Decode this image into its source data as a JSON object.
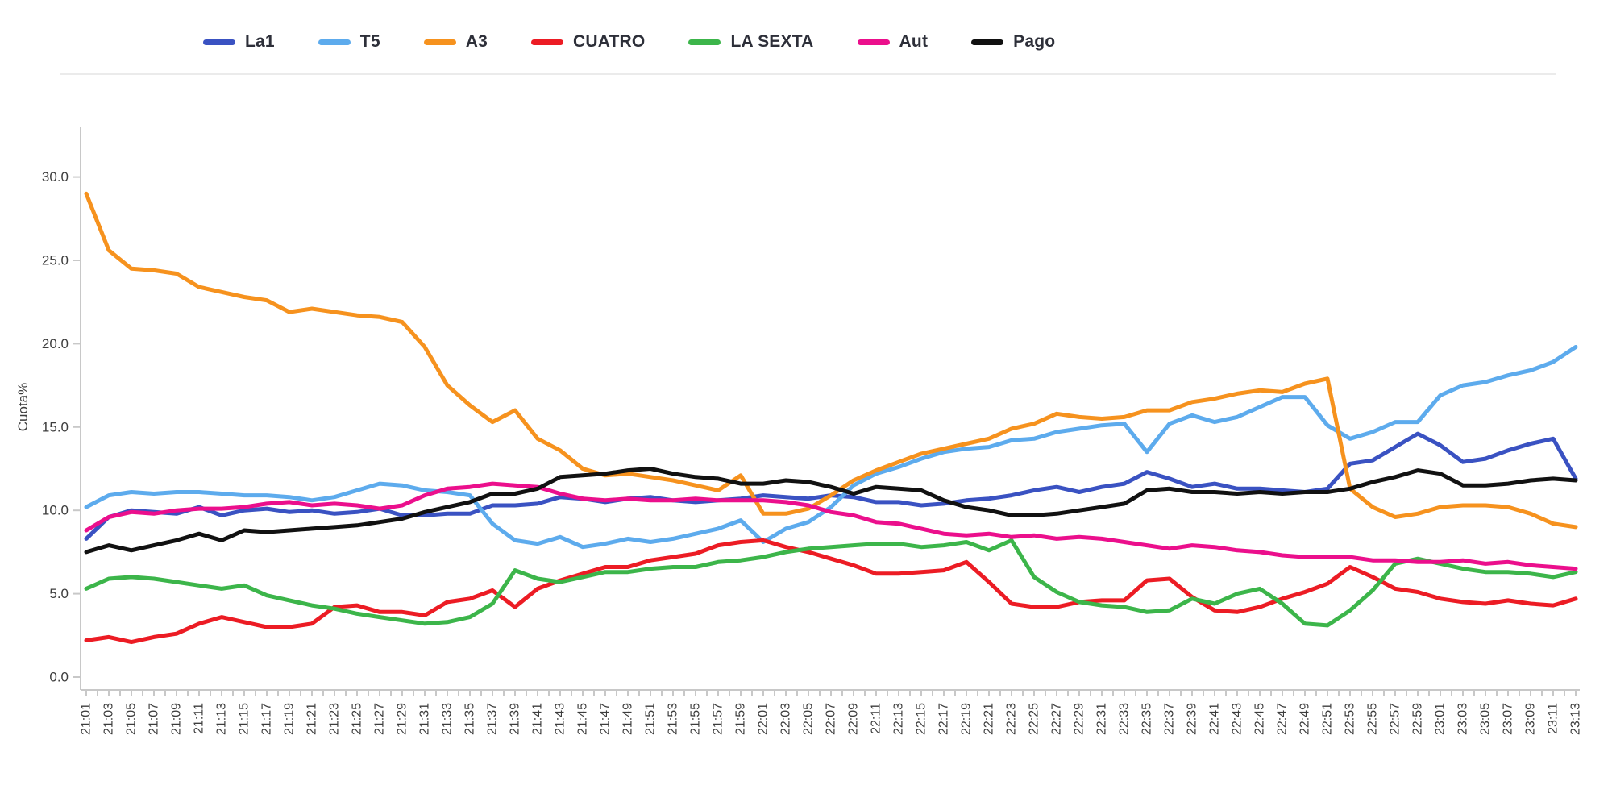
{
  "chart_data": {
    "type": "line",
    "title": "",
    "xlabel": "",
    "ylabel": "Cuota%",
    "ylim": [
      0,
      32
    ],
    "grid": false,
    "legend_position": "top",
    "x_minor_tick_minutes": 1,
    "x_label_interval_minutes": 2,
    "y_tick_labels": [
      "0.0",
      "5.0",
      "10.0",
      "15.0",
      "20.0",
      "25.0",
      "30.0"
    ],
    "y_tick_values": [
      0,
      5,
      10,
      15,
      20,
      25,
      30
    ],
    "categories": [
      "21:01",
      "21:03",
      "21:05",
      "21:07",
      "21:09",
      "21:11",
      "21:13",
      "21:15",
      "21:17",
      "21:19",
      "21:21",
      "21:23",
      "21:25",
      "21:27",
      "21:29",
      "21:31",
      "21:33",
      "21:35",
      "21:37",
      "21:39",
      "21:41",
      "21:43",
      "21:45",
      "21:47",
      "21:49",
      "21:51",
      "21:53",
      "21:55",
      "21:57",
      "21:59",
      "22:01",
      "22:03",
      "22:05",
      "22:07",
      "22:09",
      "22:11",
      "22:13",
      "22:15",
      "22:17",
      "22:19",
      "22:21",
      "22:23",
      "22:25",
      "22:27",
      "22:29",
      "22:31",
      "22:33",
      "22:35",
      "22:37",
      "22:39",
      "22:41",
      "22:43",
      "22:45",
      "22:47",
      "22:49",
      "22:51",
      "22:53",
      "22:55",
      "22:57",
      "22:59",
      "23:01",
      "23:03",
      "23:05",
      "23:07",
      "23:09",
      "23:11",
      "23:13"
    ],
    "series": [
      {
        "name": "La1",
        "color": "#3a52c2",
        "values": [
          8.3,
          9.6,
          10.0,
          9.9,
          9.8,
          10.2,
          9.7,
          10.0,
          10.1,
          9.9,
          10.0,
          9.8,
          9.9,
          10.1,
          9.7,
          9.7,
          9.8,
          9.8,
          10.3,
          10.3,
          10.4,
          10.8,
          10.7,
          10.5,
          10.7,
          10.8,
          10.6,
          10.5,
          10.6,
          10.7,
          10.9,
          10.8,
          10.7,
          10.9,
          10.8,
          10.5,
          10.5,
          10.3,
          10.4,
          10.6,
          10.7,
          10.9,
          11.2,
          11.4,
          11.1,
          11.4,
          11.6,
          12.3,
          11.9,
          11.4,
          11.6,
          11.3,
          11.3,
          11.2,
          11.1,
          11.3,
          12.8,
          13.0,
          13.8,
          14.6,
          13.9,
          12.9,
          13.1,
          13.6,
          14.0,
          14.3,
          11.9
        ]
      },
      {
        "name": "T5",
        "color": "#5dabed",
        "values": [
          10.2,
          10.9,
          11.1,
          11.0,
          11.1,
          11.1,
          11.0,
          10.9,
          10.9,
          10.8,
          10.6,
          10.8,
          11.2,
          11.6,
          11.5,
          11.2,
          11.1,
          10.9,
          9.2,
          8.2,
          8.0,
          8.4,
          7.8,
          8.0,
          8.3,
          8.1,
          8.3,
          8.6,
          8.9,
          9.4,
          8.1,
          8.9,
          9.3,
          10.2,
          11.5,
          12.2,
          12.6,
          13.1,
          13.5,
          13.7,
          13.8,
          14.2,
          14.3,
          14.7,
          14.9,
          15.1,
          15.2,
          13.5,
          15.2,
          15.7,
          15.3,
          15.6,
          16.2,
          16.8,
          16.8,
          15.1,
          14.3,
          14.7,
          15.3,
          15.3,
          16.9,
          17.5,
          17.7,
          18.1,
          18.4,
          18.9,
          19.8
        ]
      },
      {
        "name": "A3",
        "color": "#f6921e",
        "values": [
          29.0,
          25.6,
          24.5,
          24.4,
          24.2,
          23.4,
          23.1,
          22.8,
          22.6,
          21.9,
          22.1,
          21.9,
          21.7,
          21.6,
          21.3,
          19.8,
          17.5,
          16.3,
          15.3,
          16.0,
          14.3,
          13.6,
          12.5,
          12.1,
          12.2,
          12.0,
          11.8,
          11.5,
          11.2,
          12.1,
          9.8,
          9.8,
          10.1,
          10.9,
          11.8,
          12.4,
          12.9,
          13.4,
          13.7,
          14.0,
          14.3,
          14.9,
          15.2,
          15.8,
          15.6,
          15.5,
          15.6,
          16.0,
          16.0,
          16.5,
          16.7,
          17.0,
          17.2,
          17.1,
          17.6,
          17.9,
          11.3,
          10.2,
          9.6,
          9.8,
          10.2,
          10.3,
          10.3,
          10.2,
          9.8,
          9.2,
          9.0
        ]
      },
      {
        "name": "CUATRO",
        "color": "#ec1c24",
        "values": [
          2.2,
          2.4,
          2.1,
          2.4,
          2.6,
          3.2,
          3.6,
          3.3,
          3.0,
          3.0,
          3.2,
          4.2,
          4.3,
          3.9,
          3.9,
          3.7,
          4.5,
          4.7,
          5.2,
          4.2,
          5.3,
          5.8,
          6.2,
          6.6,
          6.6,
          7.0,
          7.2,
          7.4,
          7.9,
          8.1,
          8.2,
          7.8,
          7.5,
          7.1,
          6.7,
          6.2,
          6.2,
          6.3,
          6.4,
          6.9,
          5.7,
          4.4,
          4.2,
          4.2,
          4.5,
          4.6,
          4.6,
          5.8,
          5.9,
          4.8,
          4.0,
          3.9,
          4.2,
          4.7,
          5.1,
          5.6,
          6.6,
          6.0,
          5.3,
          5.1,
          4.7,
          4.5,
          4.4,
          4.6,
          4.4,
          4.3,
          4.7
        ]
      },
      {
        "name": "LA SEXTA",
        "color": "#3cb54a",
        "values": [
          5.3,
          5.9,
          6.0,
          5.9,
          5.7,
          5.5,
          5.3,
          5.5,
          4.9,
          4.6,
          4.3,
          4.1,
          3.8,
          3.6,
          3.4,
          3.2,
          3.3,
          3.6,
          4.4,
          6.4,
          5.9,
          5.7,
          6.0,
          6.3,
          6.3,
          6.5,
          6.6,
          6.6,
          6.9,
          7.0,
          7.2,
          7.5,
          7.7,
          7.8,
          7.9,
          8.0,
          8.0,
          7.8,
          7.9,
          8.1,
          7.6,
          8.2,
          6.0,
          5.1,
          4.5,
          4.3,
          4.2,
          3.9,
          4.0,
          4.7,
          4.4,
          5.0,
          5.3,
          4.4,
          3.2,
          3.1,
          4.0,
          5.2,
          6.8,
          7.1,
          6.8,
          6.5,
          6.3,
          6.3,
          6.2,
          6.0,
          6.3
        ]
      },
      {
        "name": "Aut",
        "color": "#eb0f8c",
        "values": [
          8.8,
          9.6,
          9.9,
          9.8,
          10.0,
          10.1,
          10.1,
          10.2,
          10.4,
          10.5,
          10.3,
          10.4,
          10.3,
          10.1,
          10.3,
          10.9,
          11.3,
          11.4,
          11.6,
          11.5,
          11.4,
          11.0,
          10.7,
          10.6,
          10.7,
          10.6,
          10.6,
          10.7,
          10.6,
          10.6,
          10.6,
          10.5,
          10.3,
          9.9,
          9.7,
          9.3,
          9.2,
          8.9,
          8.6,
          8.5,
          8.6,
          8.4,
          8.5,
          8.3,
          8.4,
          8.3,
          8.1,
          7.9,
          7.7,
          7.9,
          7.8,
          7.6,
          7.5,
          7.3,
          7.2,
          7.2,
          7.2,
          7.0,
          7.0,
          6.9,
          6.9,
          7.0,
          6.8,
          6.9,
          6.7,
          6.6,
          6.5
        ]
      },
      {
        "name": "Pago",
        "color": "#111111",
        "values": [
          7.5,
          7.9,
          7.6,
          7.9,
          8.2,
          8.6,
          8.2,
          8.8,
          8.7,
          8.8,
          8.9,
          9.0,
          9.1,
          9.3,
          9.5,
          9.9,
          10.2,
          10.5,
          11.0,
          11.0,
          11.3,
          12.0,
          12.1,
          12.2,
          12.4,
          12.5,
          12.2,
          12.0,
          11.9,
          11.6,
          11.6,
          11.8,
          11.7,
          11.4,
          11.0,
          11.4,
          11.3,
          11.2,
          10.6,
          10.2,
          10.0,
          9.7,
          9.7,
          9.8,
          10.0,
          10.2,
          10.4,
          11.2,
          11.3,
          11.1,
          11.1,
          11.0,
          11.1,
          11.0,
          11.1,
          11.1,
          11.3,
          11.7,
          12.0,
          12.4,
          12.2,
          11.5,
          11.5,
          11.6,
          11.8,
          11.9,
          11.8
        ]
      }
    ]
  }
}
